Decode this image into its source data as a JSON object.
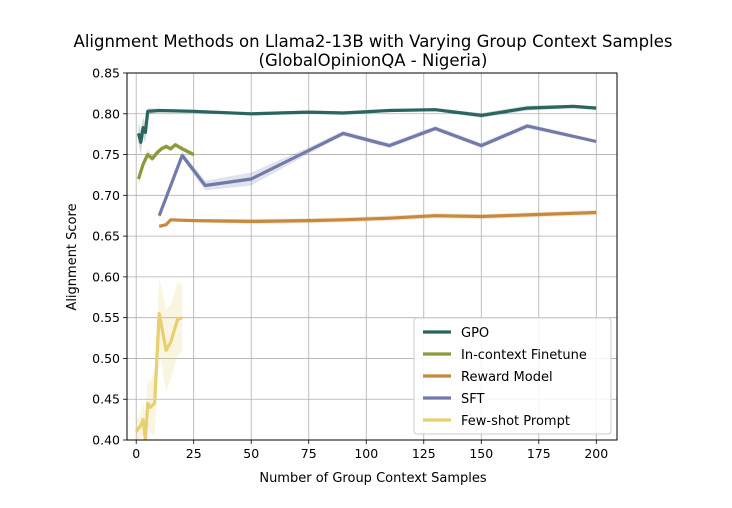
{
  "chart_data": {
    "type": "line",
    "title": "Alignment Methods on Llama2-13B with Varying Group Context Samples",
    "subtitle": "(GlobalOpinionQA - Nigeria)",
    "xlabel": "Number of Group Context Samples",
    "ylabel": "Alignment Score",
    "xlim": [
      -4,
      209
    ],
    "ylim": [
      0.4,
      0.85
    ],
    "xticks": [
      0,
      25,
      50,
      75,
      100,
      125,
      150,
      175,
      200
    ],
    "yticks": [
      0.4,
      0.45,
      0.5,
      0.55,
      0.6,
      0.65,
      0.7,
      0.75,
      0.8,
      0.85
    ],
    "grid": true,
    "legend_position": "lower-right",
    "series": [
      {
        "name": "GPO",
        "color": "#2b6560",
        "x": [
          1,
          2,
          3,
          4,
          5,
          10,
          25,
          50,
          75,
          90,
          110,
          130,
          150,
          170,
          190,
          200
        ],
        "y": [
          0.776,
          0.765,
          0.783,
          0.777,
          0.803,
          0.804,
          0.803,
          0.8,
          0.802,
          0.801,
          0.804,
          0.805,
          0.798,
          0.807,
          0.809,
          0.807
        ],
        "band": [
          0.012,
          0.015,
          0.012,
          0.012,
          0.004,
          0.002,
          0.002,
          0.002,
          0.002,
          0.002,
          0.002,
          0.002,
          0.003,
          0.003,
          0.002,
          0.002
        ]
      },
      {
        "name": "In-context Finetune",
        "color": "#8a9a3a",
        "x": [
          1,
          3,
          5,
          7,
          9,
          11,
          13,
          15,
          17,
          20,
          25
        ],
        "y": [
          0.72,
          0.738,
          0.75,
          0.745,
          0.752,
          0.757,
          0.76,
          0.757,
          0.762,
          0.757,
          0.75
        ],
        "band": [
          0.008,
          0.006,
          0.005,
          0.004,
          0.004,
          0.003,
          0.003,
          0.003,
          0.003,
          0.003,
          0.003
        ]
      },
      {
        "name": "Reward Model",
        "color": "#c8893c",
        "x": [
          10,
          13,
          15,
          25,
          50,
          75,
          90,
          110,
          130,
          150,
          170,
          190,
          200
        ],
        "y": [
          0.662,
          0.664,
          0.67,
          0.669,
          0.668,
          0.669,
          0.67,
          0.672,
          0.675,
          0.674,
          0.676,
          0.678,
          0.679
        ],
        "band": [
          0.002,
          0.002,
          0.002,
          0.002,
          0.003,
          0.003,
          0.003,
          0.003,
          0.003,
          0.003,
          0.003,
          0.003,
          0.003
        ]
      },
      {
        "name": "SFT",
        "color": "#717aa8",
        "x": [
          10,
          20,
          30,
          50,
          75,
          90,
          110,
          130,
          150,
          170,
          200
        ],
        "y": [
          0.675,
          0.749,
          0.712,
          0.72,
          0.755,
          0.776,
          0.761,
          0.782,
          0.761,
          0.785,
          0.766
        ],
        "band": [
          0.004,
          0.004,
          0.006,
          0.008,
          0.004,
          0.003,
          0.003,
          0.003,
          0.003,
          0.003,
          0.002
        ]
      },
      {
        "name": "Few-shot Prompt",
        "color": "#e8d070",
        "x": [
          0,
          2,
          3,
          4,
          5,
          6,
          8,
          10,
          13,
          15,
          18,
          20
        ],
        "y": [
          0.41,
          0.418,
          0.425,
          0.4,
          0.445,
          0.44,
          0.445,
          0.555,
          0.51,
          0.52,
          0.548,
          0.55
        ],
        "band": [
          0.012,
          0.015,
          0.02,
          0.03,
          0.03,
          0.03,
          0.04,
          0.045,
          0.05,
          0.045,
          0.045,
          0.04
        ]
      }
    ]
  }
}
